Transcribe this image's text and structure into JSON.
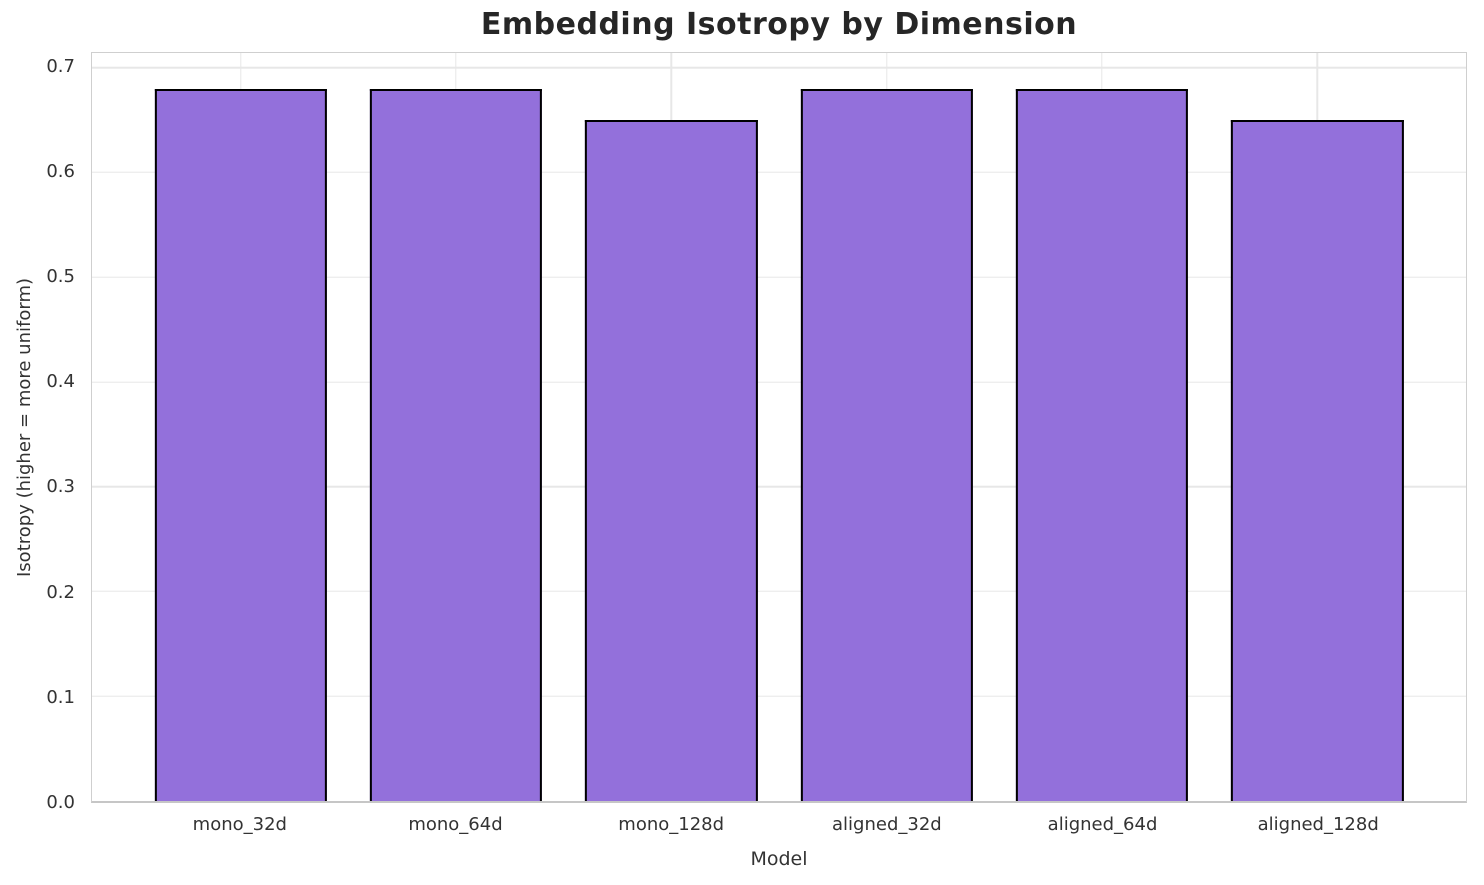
{
  "chart_data": {
    "type": "bar",
    "title": "Embedding Isotropy by Dimension",
    "xlabel": "Model",
    "ylabel": "Isotropy (higher = more uniform)",
    "categories": [
      "mono_32d",
      "mono_64d",
      "mono_128d",
      "aligned_32d",
      "aligned_64d",
      "aligned_128d"
    ],
    "values": [
      0.68,
      0.68,
      0.65,
      0.68,
      0.68,
      0.65
    ],
    "ylim": [
      0,
      0.714
    ],
    "yticks": [
      0.0,
      0.1,
      0.2,
      0.3,
      0.4,
      0.5,
      0.6,
      0.7
    ],
    "grid": true,
    "legend": "none",
    "bar_fill_color": "#9370DB",
    "bar_edge_color": "#000000",
    "grid_color": "#e7e7e7",
    "spine_color": "#cfcfcf",
    "text_color": "#333333",
    "title_color": "#262626"
  }
}
